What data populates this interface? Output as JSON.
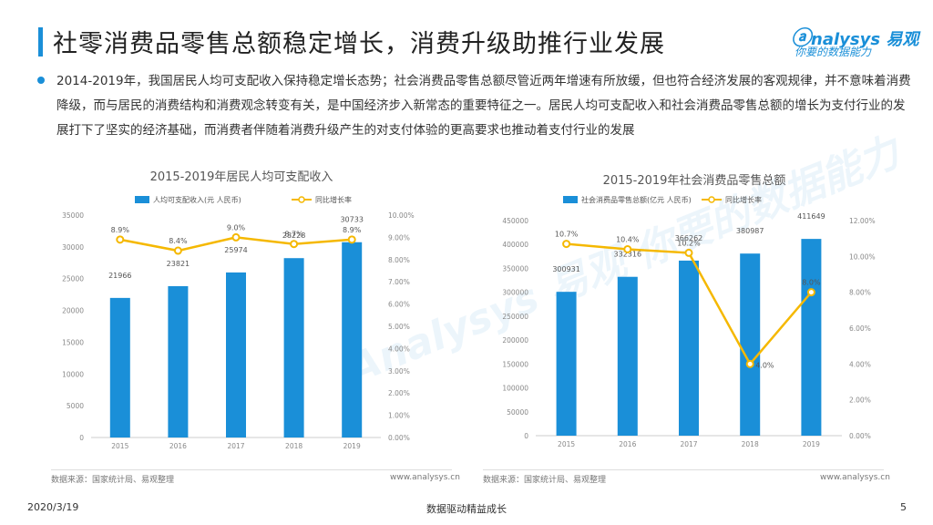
{
  "header": {
    "title": "社零消费品零售总额稳定增长，消费升级助推行业发展",
    "logo_main": "nalysys",
    "logo_cn": "易观",
    "logo_sub": "你要的数据能力"
  },
  "bullet": {
    "text": "2014-2019年，我国居民人均可支配收入保持稳定增长态势；社会消费品零售总额尽管近两年增速有所放缓，但也符合经济发展的客观规律，并不意味着消费降级，而与居民的消费结构和消费观念转变有关，是中国经济步入新常态的重要特征之一。居民人均可支配收入和社会消费品零售总额的增长为支付行业的发展打下了坚实的经济基础，而消费者伴随着消费升级产生的对支付体验的更高要求也推动着支付行业的发展"
  },
  "watermark": "Analysys 易观 你要的数据能力",
  "chart_data": [
    {
      "type": "bar",
      "title": "2015-2019年居民人均可支配收入",
      "categories": [
        "2015",
        "2016",
        "2017",
        "2018",
        "2019"
      ],
      "series": [
        {
          "name": "人均可支配收入(元 人民币)",
          "type": "bar",
          "values": [
            21966,
            23821,
            25974,
            28228,
            30733
          ],
          "labels": [
            "21966",
            "23821",
            "25974",
            "28228",
            "30733"
          ]
        },
        {
          "name": "同比增长率",
          "type": "line",
          "axis": "right",
          "values": [
            8.9,
            8.4,
            9.0,
            8.7,
            8.9
          ],
          "labels": [
            "8.9%",
            "8.4%",
            "9.0%",
            "8.7%",
            "8.9%"
          ]
        }
      ],
      "y_left": {
        "min": 0,
        "max": 35000,
        "ticks": [
          "0",
          "5000",
          "10000",
          "15000",
          "20000",
          "25000",
          "30000",
          "35000"
        ]
      },
      "y_right": {
        "min": 0,
        "max": 10,
        "ticks": [
          "0.00%",
          "1.00%",
          "2.00%",
          "3.00%",
          "4.00%",
          "5.00%",
          "6.00%",
          "7.00%",
          "8.00%",
          "9.00%",
          "10.00%"
        ]
      },
      "source": "数据来源：国家统计局、易观整理",
      "url": "www.analysys.cn"
    },
    {
      "type": "bar",
      "title": "2015-2019年社会消费品零售总额",
      "categories": [
        "2015",
        "2016",
        "2017",
        "2018",
        "2019"
      ],
      "series": [
        {
          "name": "社会消费品零售总额(亿元 人民币)",
          "type": "bar",
          "values": [
            300931,
            332316,
            366262,
            380987,
            411649
          ],
          "labels": [
            "300931",
            "332316",
            "366262",
            "380987",
            "411649"
          ]
        },
        {
          "name": "同比增长率",
          "type": "line",
          "axis": "right",
          "values": [
            10.7,
            10.4,
            10.2,
            4.0,
            8.0
          ],
          "labels": [
            "10.7%",
            "10.4%",
            "10.2%",
            "4.0%",
            "8.0%"
          ]
        }
      ],
      "y_left": {
        "min": 0,
        "max": 450000,
        "ticks": [
          "0",
          "50000",
          "100000",
          "150000",
          "200000",
          "250000",
          "300000",
          "350000",
          "400000",
          "450000"
        ]
      },
      "y_right": {
        "min": 0,
        "max": 12,
        "ticks": [
          "0.00%",
          "2.00%",
          "4.00%",
          "6.00%",
          "8.00%",
          "10.00%",
          "12.00%"
        ]
      },
      "source": "数据来源：国家统计局、易观整理",
      "url": "www.analysys.cn"
    }
  ],
  "footer": {
    "date": "2020/3/19",
    "center": "数据驱动精益成长",
    "page": "5"
  },
  "colors": {
    "accent": "#1a8fd8",
    "bar": "#1a8fd8",
    "line": "#f5b800"
  }
}
